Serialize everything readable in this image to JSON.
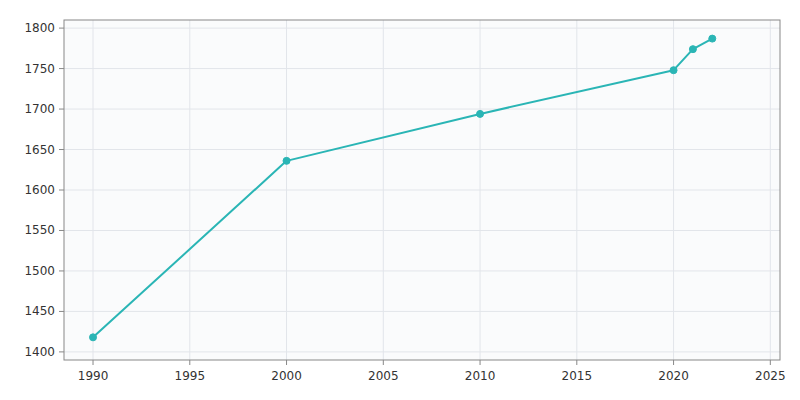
{
  "chart_data": {
    "type": "line",
    "x": [
      1990,
      2000,
      2010,
      2020,
      2021,
      2022
    ],
    "values": [
      1418,
      1636,
      1694,
      1748,
      1774,
      1787
    ],
    "color": "#2ab5b5",
    "marker": "circle",
    "xlim": [
      1988.5,
      2025.5
    ],
    "ylim": [
      1390,
      1810
    ],
    "xticks": [
      1990,
      1995,
      2000,
      2005,
      2010,
      2015,
      2020,
      2025
    ],
    "yticks": [
      1400,
      1450,
      1500,
      1550,
      1600,
      1650,
      1700,
      1750,
      1800
    ],
    "grid": true
  }
}
